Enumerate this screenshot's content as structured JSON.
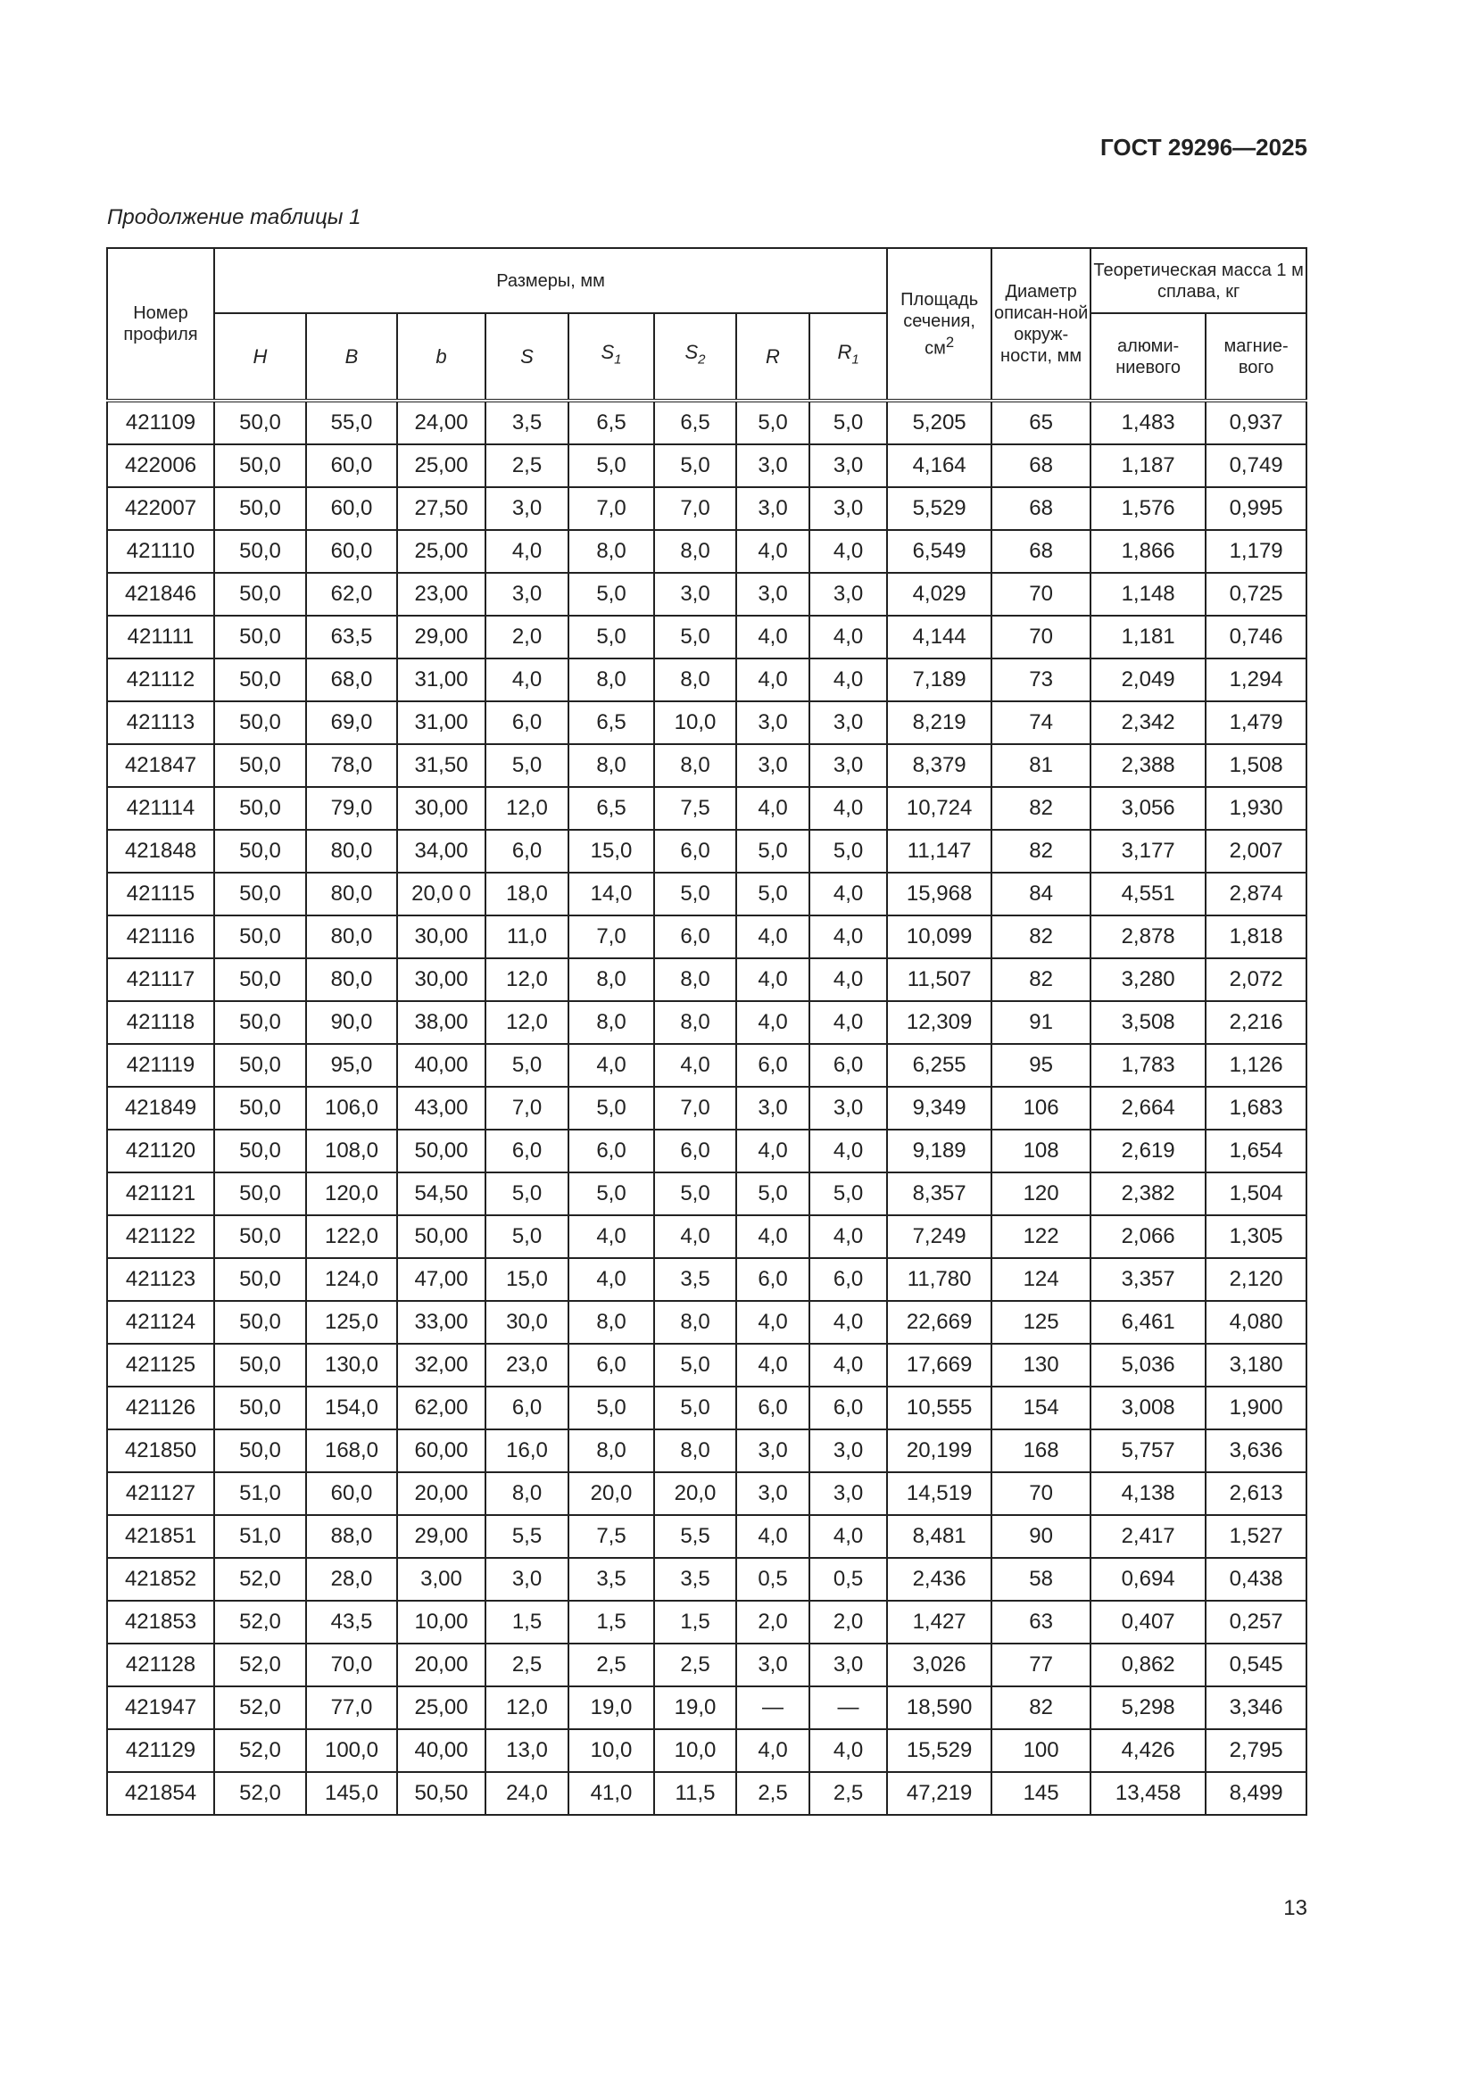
{
  "header": {
    "doc_code": "ГОСТ 29296—2025",
    "caption": "Продолжение таблицы 1",
    "page_number": "13"
  },
  "table": {
    "col_profile": "Номер профиля",
    "group_dims": "Размеры, мм",
    "dims": [
      {
        "s": "H",
        "i": ""
      },
      {
        "s": "B",
        "i": ""
      },
      {
        "s": "b",
        "i": ""
      },
      {
        "s": "S",
        "i": ""
      },
      {
        "s": "S",
        "i": "1"
      },
      {
        "s": "S",
        "i": "2"
      },
      {
        "s": "R",
        "i": ""
      },
      {
        "s": "R",
        "i": "1"
      }
    ],
    "col_area": "Площадь сечения, см",
    "col_area_sup": "2",
    "col_diam": "Диаметр описан-ной окруж-ности, мм",
    "group_mass": "Теоретическая масса 1 м сплава, кг",
    "col_al": "алюми-ниевого",
    "col_mg": "магние-вого",
    "rows": [
      [
        "421109",
        "50,0",
        "55,0",
        "24,00",
        "3,5",
        "6,5",
        "6,5",
        "5,0",
        "5,0",
        "5,205",
        "65",
        "1,483",
        "0,937"
      ],
      [
        "422006",
        "50,0",
        "60,0",
        "25,00",
        "2,5",
        "5,0",
        "5,0",
        "3,0",
        "3,0",
        "4,164",
        "68",
        "1,187",
        "0,749"
      ],
      [
        "422007",
        "50,0",
        "60,0",
        "27,50",
        "3,0",
        "7,0",
        "7,0",
        "3,0",
        "3,0",
        "5,529",
        "68",
        "1,576",
        "0,995"
      ],
      [
        "421110",
        "50,0",
        "60,0",
        "25,00",
        "4,0",
        "8,0",
        "8,0",
        "4,0",
        "4,0",
        "6,549",
        "68",
        "1,866",
        "1,179"
      ],
      [
        "421846",
        "50,0",
        "62,0",
        "23,00",
        "3,0",
        "5,0",
        "3,0",
        "3,0",
        "3,0",
        "4,029",
        "70",
        "1,148",
        "0,725"
      ],
      [
        "421111",
        "50,0",
        "63,5",
        "29,00",
        "2,0",
        "5,0",
        "5,0",
        "4,0",
        "4,0",
        "4,144",
        "70",
        "1,181",
        "0,746"
      ],
      [
        "421112",
        "50,0",
        "68,0",
        "31,00",
        "4,0",
        "8,0",
        "8,0",
        "4,0",
        "4,0",
        "7,189",
        "73",
        "2,049",
        "1,294"
      ],
      [
        "421113",
        "50,0",
        "69,0",
        "31,00",
        "6,0",
        "6,5",
        "10,0",
        "3,0",
        "3,0",
        "8,219",
        "74",
        "2,342",
        "1,479"
      ],
      [
        "421847",
        "50,0",
        "78,0",
        "31,50",
        "5,0",
        "8,0",
        "8,0",
        "3,0",
        "3,0",
        "8,379",
        "81",
        "2,388",
        "1,508"
      ],
      [
        "421114",
        "50,0",
        "79,0",
        "30,00",
        "12,0",
        "6,5",
        "7,5",
        "4,0",
        "4,0",
        "10,724",
        "82",
        "3,056",
        "1,930"
      ],
      [
        "421848",
        "50,0",
        "80,0",
        "34,00",
        "6,0",
        "15,0",
        "6,0",
        "5,0",
        "5,0",
        "11,147",
        "82",
        "3,177",
        "2,007"
      ],
      [
        "421115",
        "50,0",
        "80,0",
        "20,0 0",
        "18,0",
        "14,0",
        "5,0",
        "5,0",
        "4,0",
        "15,968",
        "84",
        "4,551",
        "2,874"
      ],
      [
        "421116",
        "50,0",
        "80,0",
        "30,00",
        "11,0",
        "7,0",
        "6,0",
        "4,0",
        "4,0",
        "10,099",
        "82",
        "2,878",
        "1,818"
      ],
      [
        "421117",
        "50,0",
        "80,0",
        "30,00",
        "12,0",
        "8,0",
        "8,0",
        "4,0",
        "4,0",
        "11,507",
        "82",
        "3,280",
        "2,072"
      ],
      [
        "421118",
        "50,0",
        "90,0",
        "38,00",
        "12,0",
        "8,0",
        "8,0",
        "4,0",
        "4,0",
        "12,309",
        "91",
        "3,508",
        "2,216"
      ],
      [
        "421119",
        "50,0",
        "95,0",
        "40,00",
        "5,0",
        "4,0",
        "4,0",
        "6,0",
        "6,0",
        "6,255",
        "95",
        "1,783",
        "1,126"
      ],
      [
        "421849",
        "50,0",
        "106,0",
        "43,00",
        "7,0",
        "5,0",
        "7,0",
        "3,0",
        "3,0",
        "9,349",
        "106",
        "2,664",
        "1,683"
      ],
      [
        "421120",
        "50,0",
        "108,0",
        "50,00",
        "6,0",
        "6,0",
        "6,0",
        "4,0",
        "4,0",
        "9,189",
        "108",
        "2,619",
        "1,654"
      ],
      [
        "421121",
        "50,0",
        "120,0",
        "54,50",
        "5,0",
        "5,0",
        "5,0",
        "5,0",
        "5,0",
        "8,357",
        "120",
        "2,382",
        "1,504"
      ],
      [
        "421122",
        "50,0",
        "122,0",
        "50,00",
        "5,0",
        "4,0",
        "4,0",
        "4,0",
        "4,0",
        "7,249",
        "122",
        "2,066",
        "1,305"
      ],
      [
        "421123",
        "50,0",
        "124,0",
        "47,00",
        "15,0",
        "4,0",
        "3,5",
        "6,0",
        "6,0",
        "11,780",
        "124",
        "3,357",
        "2,120"
      ],
      [
        "421124",
        "50,0",
        "125,0",
        "33,00",
        "30,0",
        "8,0",
        "8,0",
        "4,0",
        "4,0",
        "22,669",
        "125",
        "6,461",
        "4,080"
      ],
      [
        "421125",
        "50,0",
        "130,0",
        "32,00",
        "23,0",
        "6,0",
        "5,0",
        "4,0",
        "4,0",
        "17,669",
        "130",
        "5,036",
        "3,180"
      ],
      [
        "421126",
        "50,0",
        "154,0",
        "62,00",
        "6,0",
        "5,0",
        "5,0",
        "6,0",
        "6,0",
        "10,555",
        "154",
        "3,008",
        "1,900"
      ],
      [
        "421850",
        "50,0",
        "168,0",
        "60,00",
        "16,0",
        "8,0",
        "8,0",
        "3,0",
        "3,0",
        "20,199",
        "168",
        "5,757",
        "3,636"
      ],
      [
        "421127",
        "51,0",
        "60,0",
        "20,00",
        "8,0",
        "20,0",
        "20,0",
        "3,0",
        "3,0",
        "14,519",
        "70",
        "4,138",
        "2,613"
      ],
      [
        "421851",
        "51,0",
        "88,0",
        "29,00",
        "5,5",
        "7,5",
        "5,5",
        "4,0",
        "4,0",
        "8,481",
        "90",
        "2,417",
        "1,527"
      ],
      [
        "421852",
        "52,0",
        "28,0",
        "3,00",
        "3,0",
        "3,5",
        "3,5",
        "0,5",
        "0,5",
        "2,436",
        "58",
        "0,694",
        "0,438"
      ],
      [
        "421853",
        "52,0",
        "43,5",
        "10,00",
        "1,5",
        "1,5",
        "1,5",
        "2,0",
        "2,0",
        "1,427",
        "63",
        "0,407",
        "0,257"
      ],
      [
        "421128",
        "52,0",
        "70,0",
        "20,00",
        "2,5",
        "2,5",
        "2,5",
        "3,0",
        "3,0",
        "3,026",
        "77",
        "0,862",
        "0,545"
      ],
      [
        "421947",
        "52,0",
        "77,0",
        "25,00",
        "12,0",
        "19,0",
        "19,0",
        "—",
        "—",
        "18,590",
        "82",
        "5,298",
        "3,346"
      ],
      [
        "421129",
        "52,0",
        "100,0",
        "40,00",
        "13,0",
        "10,0",
        "10,0",
        "4,0",
        "4,0",
        "15,529",
        "100",
        "4,426",
        "2,795"
      ],
      [
        "421854",
        "52,0",
        "145,0",
        "50,50",
        "24,0",
        "41,0",
        "11,5",
        "2,5",
        "2,5",
        "47,219",
        "145",
        "13,458",
        "8,499"
      ]
    ]
  }
}
